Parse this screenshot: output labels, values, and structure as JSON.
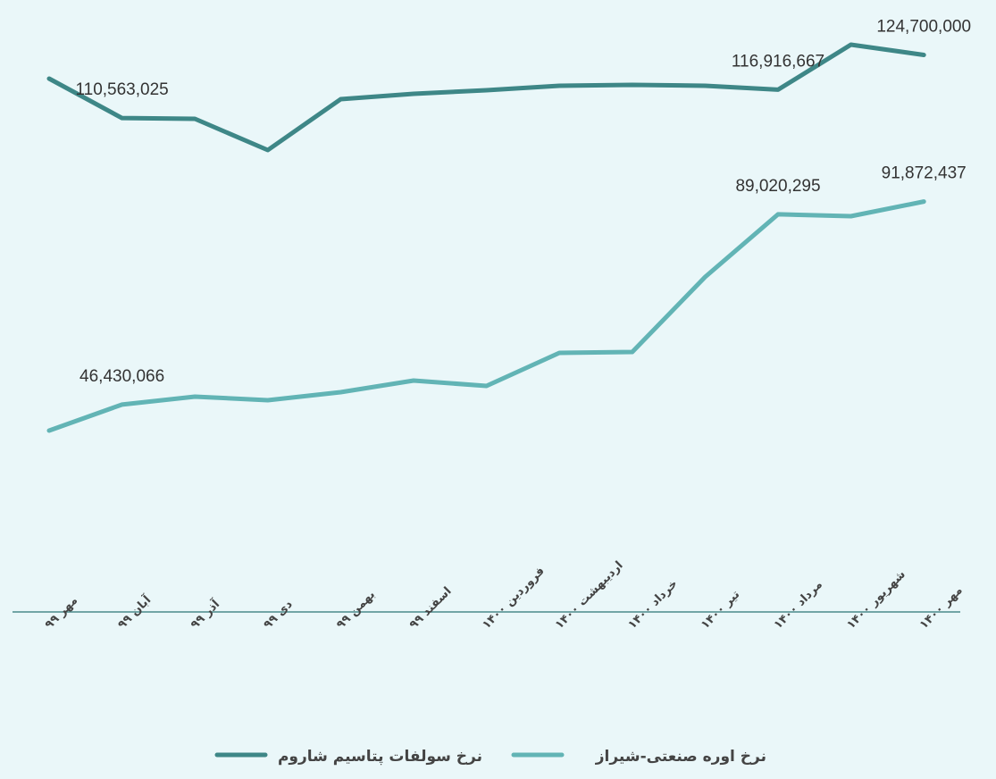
{
  "chart_data": {
    "type": "line",
    "categories": [
      "مهر ۹۹",
      "آبان ۹۹",
      "آذر ۹۹",
      "دی ۹۹",
      "بهمن ۹۹",
      "اسفند ۹۹",
      "فروردین ۱۴۰۰",
      "اردیبهشت ۱۴۰۰",
      "خرداد ۱۴۰۰",
      "تیر ۱۴۰۰",
      "مرداد ۱۴۰۰",
      "شهریور ۱۴۰۰",
      "مهر ۱۴۰۰"
    ],
    "series": [
      {
        "name": "نرخ سولفات پتاسیم شاروم",
        "color": "#3e8787",
        "values": [
          119400000,
          110563025,
          110400000,
          103400000,
          114800000,
          116000000,
          116800000,
          117800000,
          118000000,
          117800000,
          116916667,
          127000000,
          124700000
        ],
        "value_labels": [
          null,
          "110,563,025",
          null,
          null,
          null,
          null,
          null,
          null,
          null,
          null,
          "116,916,667",
          null,
          "124,700,000"
        ]
      },
      {
        "name": "نرخ اوره صنعتی-شیراز",
        "color": "#62b4b5",
        "values": [
          40600000,
          46430066,
          48200000,
          47400000,
          49200000,
          51800000,
          50600000,
          58000000,
          58200000,
          75000000,
          89020295,
          88600000,
          91872437
        ],
        "value_labels": [
          null,
          "46,430,066",
          null,
          null,
          null,
          null,
          null,
          null,
          null,
          null,
          "89,020,295",
          null,
          "91,872,437"
        ]
      }
    ],
    "ylim": [
      0,
      135000000
    ]
  }
}
